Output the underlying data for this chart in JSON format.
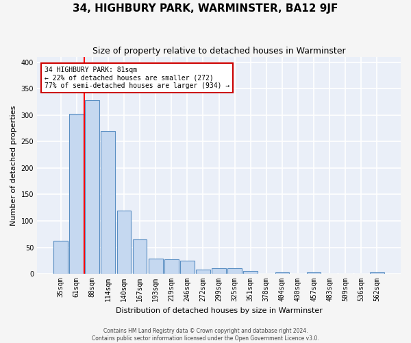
{
  "title": "34, HIGHBURY PARK, WARMINSTER, BA12 9JF",
  "subtitle": "Size of property relative to detached houses in Warminster",
  "xlabel": "Distribution of detached houses by size in Warminster",
  "ylabel": "Number of detached properties",
  "categories": [
    "35sqm",
    "61sqm",
    "88sqm",
    "114sqm",
    "140sqm",
    "167sqm",
    "193sqm",
    "219sqm",
    "246sqm",
    "272sqm",
    "299sqm",
    "325sqm",
    "351sqm",
    "378sqm",
    "404sqm",
    "430sqm",
    "457sqm",
    "483sqm",
    "509sqm",
    "536sqm",
    "562sqm"
  ],
  "values": [
    62,
    302,
    328,
    270,
    120,
    65,
    28,
    27,
    25,
    8,
    11,
    11,
    5,
    0,
    3,
    0,
    3,
    0,
    0,
    0,
    3
  ],
  "bar_color": "#c5d8f0",
  "bar_edge_color": "#5a8fc3",
  "property_bin_index": 1,
  "red_line_x": 1.5,
  "annotation_title": "34 HIGHBURY PARK: 81sqm",
  "annotation_line1": "← 22% of detached houses are smaller (272)",
  "annotation_line2": "77% of semi-detached houses are larger (934) →",
  "annotation_box_color": "#ffffff",
  "annotation_box_edge": "#cc0000",
  "ylim": [
    0,
    410
  ],
  "yticks": [
    0,
    50,
    100,
    150,
    200,
    250,
    300,
    350,
    400
  ],
  "footer1": "Contains HM Land Registry data © Crown copyright and database right 2024.",
  "footer2": "Contains public sector information licensed under the Open Government Licence v3.0.",
  "fig_facecolor": "#f5f5f5",
  "plot_facecolor": "#eaeff8",
  "grid_color": "#ffffff",
  "title_fontsize": 11,
  "subtitle_fontsize": 9,
  "axis_label_fontsize": 8,
  "tick_fontsize": 7,
  "footer_fontsize": 5.5
}
